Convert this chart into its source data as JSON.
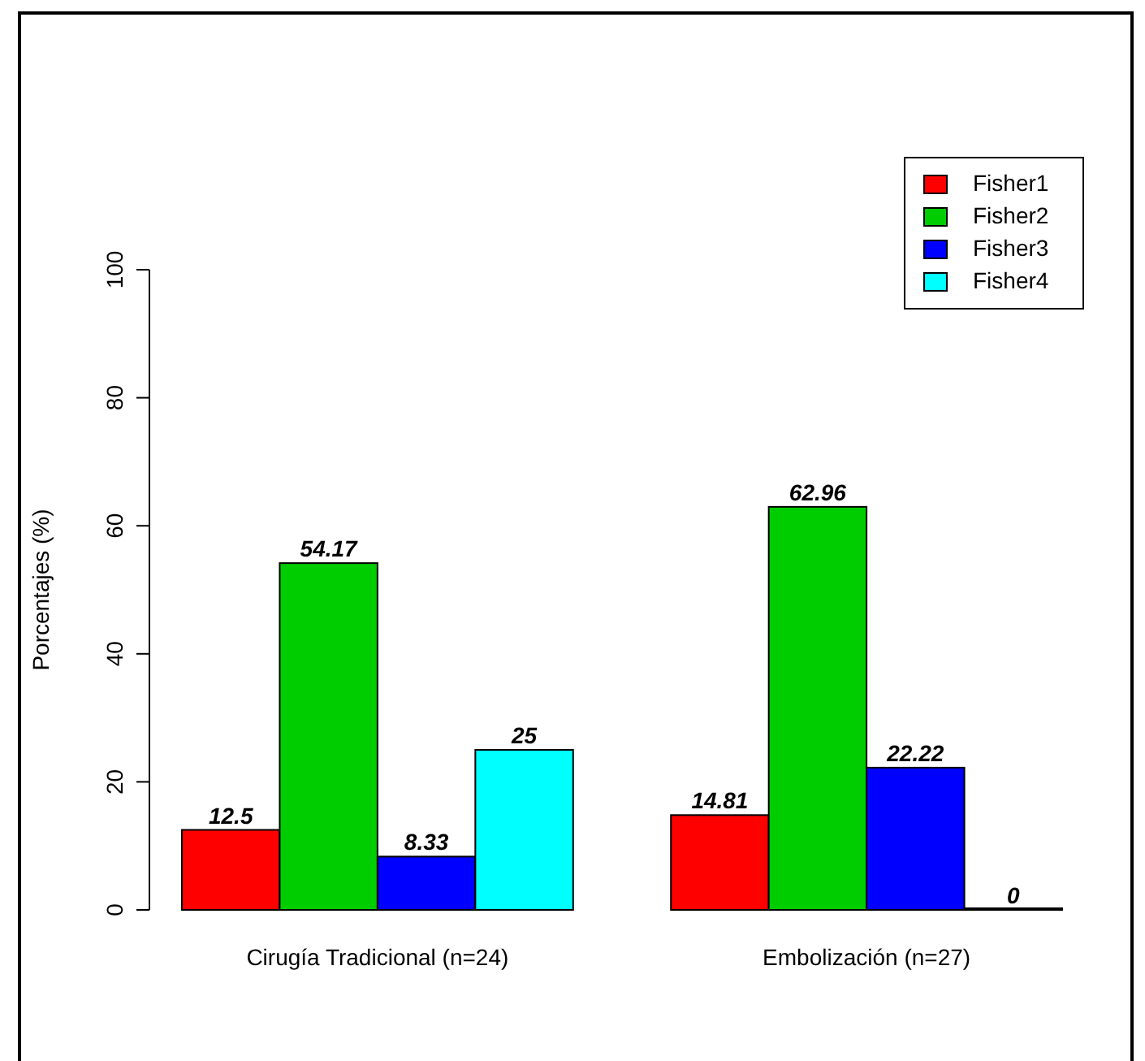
{
  "chart_data": {
    "type": "bar",
    "ylabel": "Porcentajes (%)",
    "categories": [
      "Cirugía Tradicional (n=24)",
      "Embolización (n=27)"
    ],
    "series": [
      {
        "name": "Fisher1",
        "color": "#ff0000",
        "values": [
          12.5,
          14.81
        ]
      },
      {
        "name": "Fisher2",
        "color": "#00cd00",
        "values": [
          54.17,
          62.96
        ]
      },
      {
        "name": "Fisher3",
        "color": "#0000ff",
        "values": [
          8.33,
          22.22
        ]
      },
      {
        "name": "Fisher4",
        "color": "#00ffff",
        "values": [
          25,
          0
        ]
      }
    ],
    "ylim": [
      0,
      100
    ],
    "yticks": [
      0,
      20,
      40,
      60,
      80,
      100
    ],
    "data_labels": true,
    "legend": "top right"
  }
}
